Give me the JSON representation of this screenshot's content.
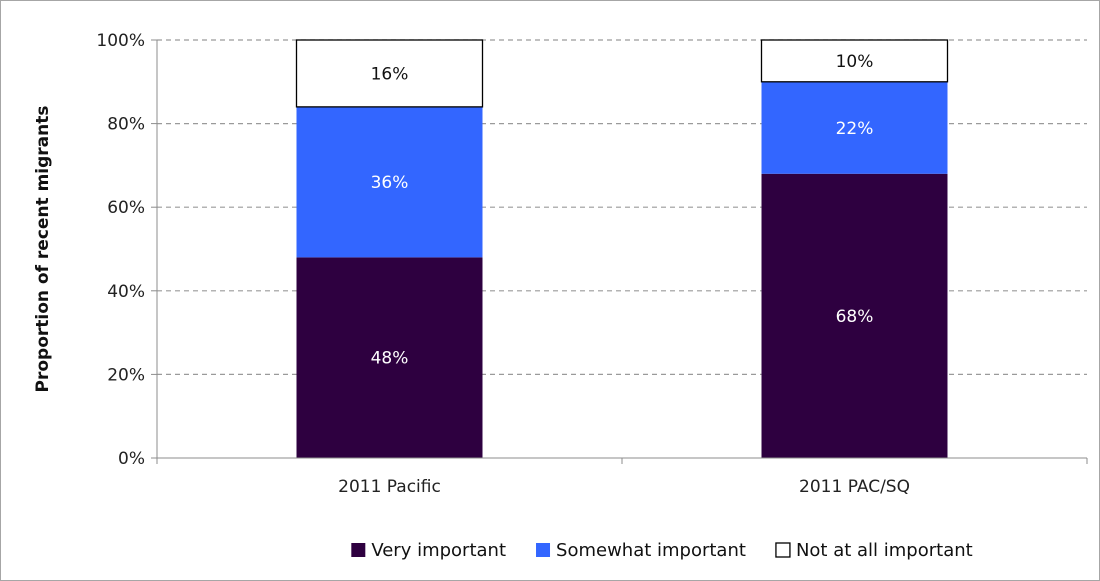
{
  "chart_data": {
    "type": "bar",
    "stacked": true,
    "title": "",
    "xlabel": "",
    "ylabel": "Proportion of recent migrants",
    "ylim": [
      0,
      100
    ],
    "yticks": [
      "0%",
      "20%",
      "40%",
      "60%",
      "80%",
      "100%"
    ],
    "grid": true,
    "legend_position": "bottom",
    "categories": [
      "2011 Pacific",
      "2011 PAC/SQ"
    ],
    "series": [
      {
        "name": "Very important",
        "values": [
          48,
          68
        ],
        "labels": [
          "48%",
          "68%"
        ],
        "color": "#2e0040",
        "label_color": "#ffffff"
      },
      {
        "name": "Somewhat important",
        "values": [
          36,
          22
        ],
        "labels": [
          "36%",
          "22%"
        ],
        "color": "#3366ff",
        "label_color": "#ffffff"
      },
      {
        "name": "Not at all important",
        "values": [
          16,
          10
        ],
        "labels": [
          "16%",
          "10%"
        ],
        "color": "#ffffff",
        "label_color": "#111111"
      }
    ]
  }
}
